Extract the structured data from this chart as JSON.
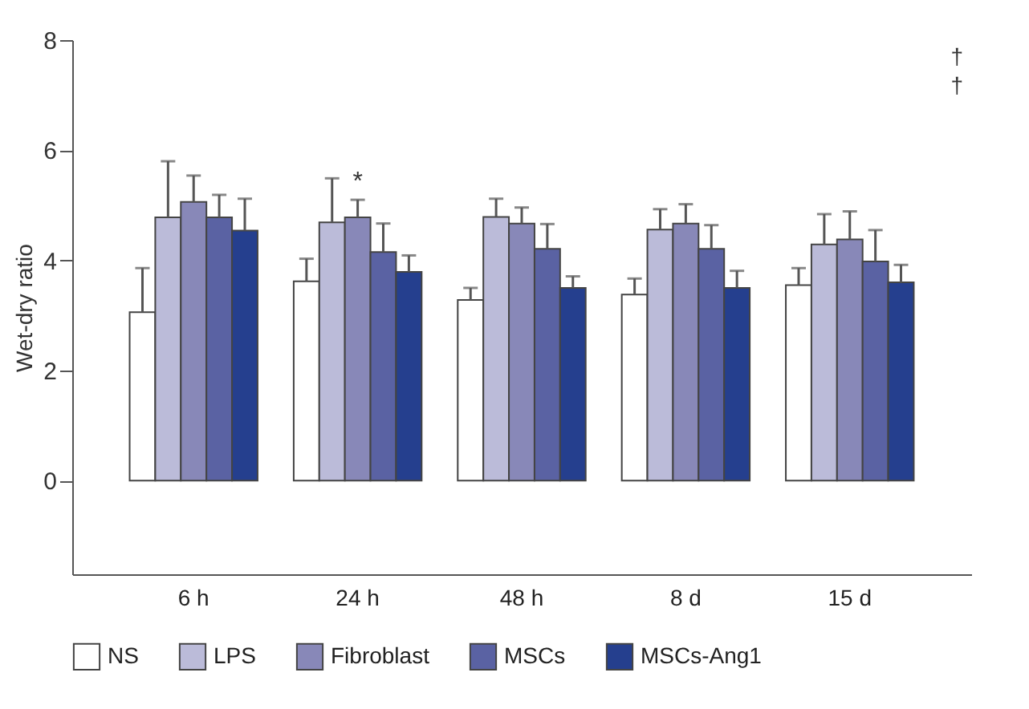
{
  "chart_data": {
    "type": "bar",
    "ylabel": "Wet-dry ratio",
    "categories": [
      "6 h",
      "24 h",
      "48 h",
      "8 d",
      "15 d"
    ],
    "series": [
      {
        "name": "NS",
        "color": "#ffffff",
        "values": [
          3.06,
          3.62,
          3.28,
          3.38,
          3.55
        ],
        "errors": [
          [
            3.06,
            3.86
          ],
          [
            3.62,
            4.03
          ],
          [
            3.28,
            3.5
          ],
          [
            3.38,
            3.67
          ],
          [
            3.55,
            3.86
          ]
        ]
      },
      {
        "name": "LPS",
        "color": "#bbbbd9",
        "values": [
          4.78,
          4.69,
          4.79,
          4.56,
          4.29
        ],
        "errors": [
          [
            4.78,
            5.8
          ],
          [
            4.69,
            5.49
          ],
          [
            4.79,
            5.12
          ],
          [
            4.56,
            4.93
          ],
          [
            4.29,
            4.84
          ]
        ]
      },
      {
        "name": "Fibroblast",
        "color": "#8888b8",
        "values": [
          5.06,
          4.78,
          4.67,
          4.67,
          4.38
        ],
        "errors": [
          [
            5.06,
            5.54
          ],
          [
            4.78,
            5.1
          ],
          [
            4.67,
            4.96
          ],
          [
            4.67,
            5.02
          ],
          [
            4.38,
            4.89
          ]
        ]
      },
      {
        "name": "MSCs",
        "color": "#5a62a3",
        "values": [
          4.78,
          4.15,
          4.21,
          4.21,
          3.98
        ],
        "errors": [
          [
            4.78,
            5.19
          ],
          [
            4.15,
            4.67
          ],
          [
            4.21,
            4.66
          ],
          [
            4.21,
            4.64
          ],
          [
            3.98,
            4.55
          ]
        ]
      },
      {
        "name": "MSCs-Ang1",
        "color": "#253f8e",
        "values": [
          4.54,
          3.79,
          3.5,
          3.5,
          3.6
        ],
        "errors": [
          [
            4.54,
            5.12
          ],
          [
            3.79,
            4.09
          ],
          [
            3.5,
            3.71
          ],
          [
            3.5,
            3.81
          ],
          [
            3.6,
            3.92
          ]
        ]
      }
    ],
    "ylim": [
      -1.7,
      8
    ],
    "yticks": [
      0,
      2,
      4,
      6,
      8
    ],
    "legend": "bottom",
    "annotations": [
      {
        "text": "*",
        "x": "24 h",
        "y": 5.2
      },
      "†",
      "†"
    ]
  }
}
